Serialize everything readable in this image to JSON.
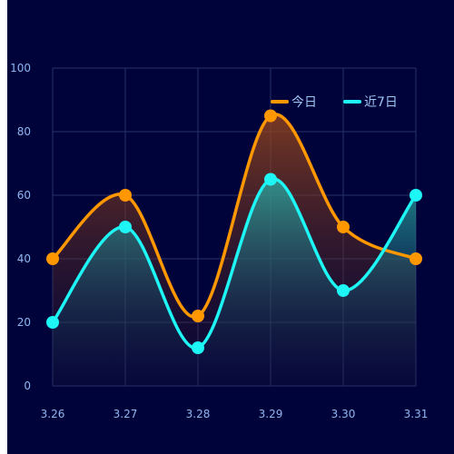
{
  "chart_data": {
    "type": "line",
    "smooth": true,
    "area_fill": true,
    "categories": [
      "3.26",
      "3.27",
      "3.28",
      "3.29",
      "3.30",
      "3.31"
    ],
    "ylim": [
      0,
      100
    ],
    "yticks": [
      0,
      20,
      40,
      60,
      80,
      100
    ],
    "grid": true,
    "legend_position": "top-right",
    "series": [
      {
        "name": "今日",
        "values": [
          40,
          60,
          22,
          85,
          50,
          40
        ],
        "color": "#ff9800"
      },
      {
        "name": "近7日",
        "values": [
          20,
          50,
          12,
          65,
          30,
          60
        ],
        "color": "#1ef5f5"
      }
    ]
  }
}
